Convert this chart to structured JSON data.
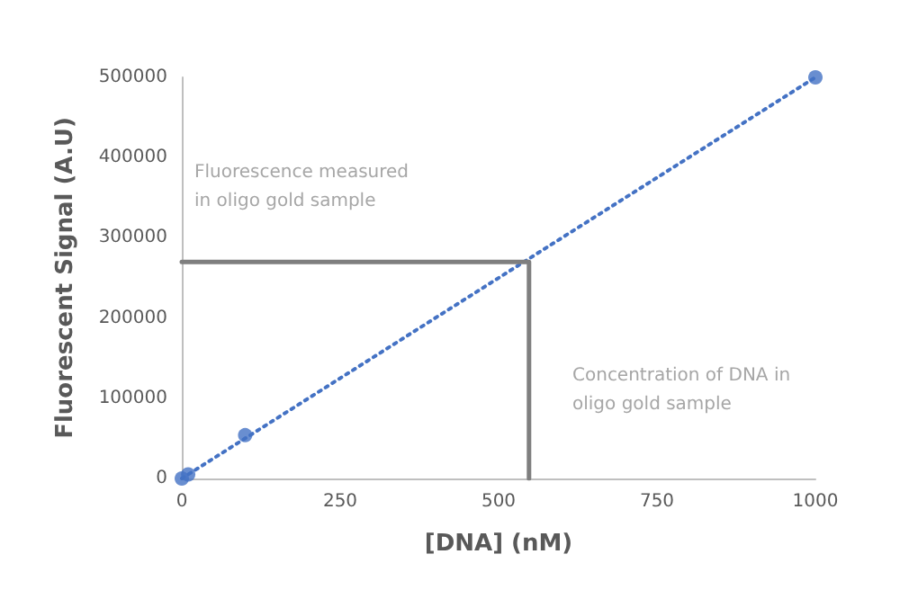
{
  "chart_data": {
    "type": "scatter",
    "xlabel": "[DNA] (nM)",
    "ylabel": "Fluorescent Signal (A.U)",
    "xlim": [
      0,
      1000
    ],
    "xticks": [
      0,
      250,
      500,
      750,
      1000
    ],
    "ylim": [
      0,
      500000
    ],
    "yticks": [
      0,
      100000,
      200000,
      300000,
      400000,
      500000
    ],
    "grid": false,
    "series": [
      {
        "type": "line",
        "color": "#4472c4",
        "x": [
          0,
          1000
        ],
        "values": [
          0,
          500000
        ],
        "line_style": "dotted",
        "marker": "none"
      },
      {
        "color": "#4472c4",
        "x": [
          0,
          10,
          100,
          1000
        ],
        "values": [
          0,
          5000,
          54000,
          500000
        ],
        "marker": "circle"
      },
      {
        "type": "line",
        "color": "#7f7f7f",
        "x": [
          0,
          548,
          548
        ],
        "values": [
          270000,
          270000,
          0
        ],
        "line_style": "solid",
        "marker": "none"
      }
    ],
    "annotations": [
      "Fluorescence measured\nin oligo gold sample",
      "Concentration of DNA in\noligo gold sample"
    ]
  }
}
